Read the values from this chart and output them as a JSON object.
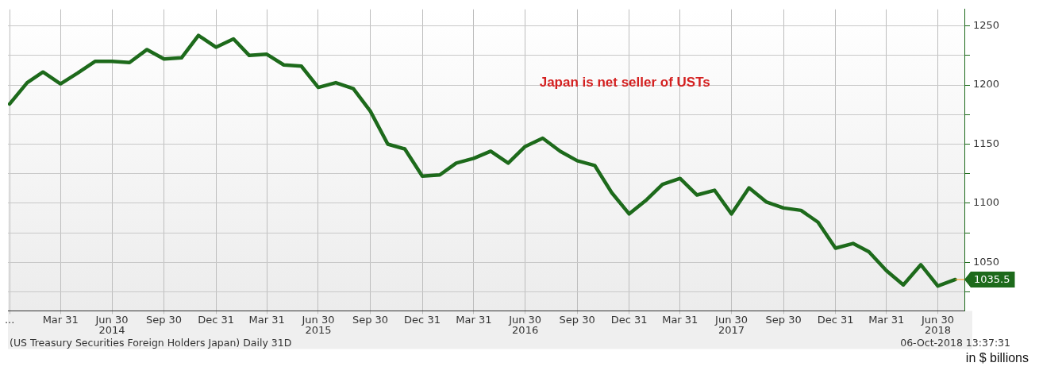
{
  "chart_data": {
    "type": "line",
    "x": [
      "2013-12-31",
      "2014-01-31",
      "2014-02-28",
      "2014-03-31",
      "2014-04-30",
      "2014-05-31",
      "2014-06-30",
      "2014-07-31",
      "2014-08-31",
      "2014-09-30",
      "2014-10-31",
      "2014-11-30",
      "2014-12-31",
      "2015-01-31",
      "2015-02-28",
      "2015-03-31",
      "2015-04-30",
      "2015-05-31",
      "2015-06-30",
      "2015-07-31",
      "2015-08-31",
      "2015-09-30",
      "2015-10-31",
      "2015-11-30",
      "2015-12-31",
      "2016-01-31",
      "2016-02-29",
      "2016-03-31",
      "2016-04-30",
      "2016-05-31",
      "2016-06-30",
      "2016-07-31",
      "2016-08-31",
      "2016-09-30",
      "2016-10-31",
      "2016-11-30",
      "2016-12-31",
      "2017-01-31",
      "2017-02-28",
      "2017-03-31",
      "2017-04-30",
      "2017-05-31",
      "2017-06-30",
      "2017-07-31",
      "2017-08-31",
      "2017-09-30",
      "2017-10-31",
      "2017-11-30",
      "2017-12-31",
      "2018-01-31",
      "2018-02-28",
      "2018-03-31",
      "2018-04-30",
      "2018-05-31",
      "2018-06-30",
      "2018-07-31"
    ],
    "series": [
      {
        "color": "#1d6a1b",
        "values": [
          1184,
          1202,
          1211,
          1201,
          1210,
          1220,
          1220,
          1219,
          1230,
          1222,
          1223,
          1242,
          1232,
          1239,
          1225,
          1226,
          1217,
          1216,
          1198,
          1202,
          1197,
          1178,
          1150,
          1146,
          1123,
          1124,
          1134,
          1138,
          1144,
          1134,
          1148,
          1155,
          1144,
          1136,
          1132,
          1109,
          1091,
          1103,
          1116,
          1121,
          1107,
          1111,
          1091,
          1113,
          1101,
          1096,
          1094,
          1084,
          1062,
          1066,
          1059,
          1043,
          1031,
          1048,
          1030,
          1035.5
        ],
        "value_labels": [
          null,
          null,
          null,
          null,
          null,
          null,
          null,
          null,
          null,
          null,
          null,
          null,
          null,
          null,
          null,
          null,
          null,
          null,
          null,
          null,
          null,
          null,
          null,
          null,
          null,
          null,
          null,
          null,
          null,
          null,
          null,
          null,
          null,
          null,
          null,
          null,
          null,
          null,
          null,
          null,
          null,
          null,
          null,
          null,
          null,
          null,
          null,
          null,
          null,
          null,
          null,
          null,
          null,
          null,
          null,
          "1035.5"
        ]
      }
    ],
    "xlim": [
      "2013-12-28",
      "2018-08-16"
    ],
    "xticks": [
      {
        "value": "2013-12-31",
        "label": "..."
      },
      {
        "value": "2014-03-31",
        "label": "Mar 31"
      },
      {
        "value": "2014-06-30",
        "label": "Jun 30"
      },
      {
        "value": "2014-09-30",
        "label": "Sep 30"
      },
      {
        "value": "2014-12-31",
        "label": "Dec 31"
      },
      {
        "value": "2015-03-31",
        "label": "Mar 31"
      },
      {
        "value": "2015-06-30",
        "label": "Jun 30"
      },
      {
        "value": "2015-09-30",
        "label": "Sep 30"
      },
      {
        "value": "2015-12-31",
        "label": "Dec 31"
      },
      {
        "value": "2016-03-31",
        "label": "Mar 31"
      },
      {
        "value": "2016-06-30",
        "label": "Jun 30"
      },
      {
        "value": "2016-09-30",
        "label": "Sep 30"
      },
      {
        "value": "2016-12-31",
        "label": "Dec 31"
      },
      {
        "value": "2017-03-31",
        "label": "Mar 31"
      },
      {
        "value": "2017-06-30",
        "label": "Jun 30"
      },
      {
        "value": "2017-09-30",
        "label": "Sep 30"
      },
      {
        "value": "2017-12-31",
        "label": "Dec 31"
      },
      {
        "value": "2018-03-31",
        "label": "Mar 31"
      },
      {
        "value": "2018-06-30",
        "label": "Jun 30"
      }
    ],
    "ylim": [
      1009,
      1264
    ],
    "yticks": [
      {
        "value": 1025,
        "label": null
      },
      1050,
      {
        "value": 1075,
        "label": null
      },
      1100,
      {
        "value": 1125,
        "label": null
      },
      1150,
      {
        "value": 1175,
        "label": null
      },
      1200,
      {
        "value": 1225,
        "label": null
      },
      1250
    ],
    "grid": true,
    "legend": false,
    "marker": "none",
    "line_style": "solid",
    "annotations": [
      "Japan is net seller of USTs",
      "2014",
      "2015",
      "2016",
      "2017",
      "2018",
      "(US Treasury Securities Foreign Holders Japan) Daily 31D",
      "06-Oct-2018 13:37:31",
      "in $ billions"
    ]
  }
}
